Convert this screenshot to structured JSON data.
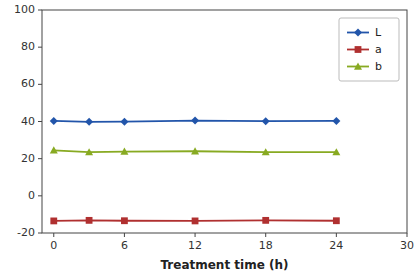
{
  "chart_data": {
    "type": "line",
    "xlabel": "Treatment time (h)",
    "x": [
      0,
      3,
      6,
      12,
      18,
      24
    ],
    "series": [
      {
        "name": "L",
        "color": "#2255aa",
        "marker": "diamond",
        "values": [
          40.3,
          39.8,
          39.9,
          40.5,
          40.2,
          40.3
        ]
      },
      {
        "name": "a",
        "color": "#b03030",
        "marker": "square",
        "values": [
          -13.5,
          -13.2,
          -13.4,
          -13.5,
          -13.2,
          -13.4
        ]
      },
      {
        "name": "b",
        "color": "#88aa22",
        "marker": "triangle",
        "values": [
          24.5,
          23.5,
          23.8,
          24.0,
          23.5,
          23.5
        ]
      }
    ],
    "xlim": [
      -1,
      30
    ],
    "ylim": [
      -20,
      100
    ],
    "xticks": [
      0,
      6,
      12,
      18,
      24,
      30
    ],
    "yticks": [
      -20,
      0,
      20,
      40,
      60,
      80,
      100
    ],
    "grid": false,
    "legend": "upper right"
  }
}
